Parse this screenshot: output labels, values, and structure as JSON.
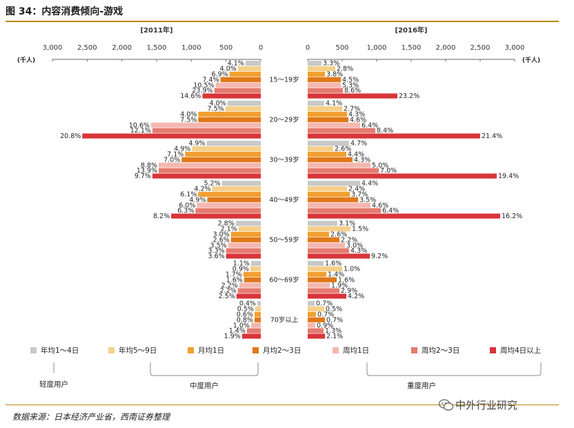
{
  "figure": {
    "title": "图 34：内容消费倾向-游戏",
    "source": "数据来源：日本经济产业省，西南证券整理",
    "watermark": "中外行业研究",
    "watermark_icon": "wechat-icon"
  },
  "chart_data": {
    "type": "bar",
    "unit_label": "(千人)",
    "panels": [
      {
        "name": "[2011年]",
        "direction": "left",
        "ticks": [
          3000,
          2500,
          2000,
          1500,
          1000,
          500,
          0
        ],
        "tick_labels": [
          "3,000",
          "2,500",
          "2,000",
          "1,500",
          "1,000",
          "500",
          "0"
        ],
        "xlim": [
          0,
          3000
        ]
      },
      {
        "name": "[2016年]",
        "direction": "right",
        "ticks": [
          0,
          500,
          1000,
          1500,
          2000,
          2500,
          3000
        ],
        "tick_labels": [
          "0",
          "500",
          "1,000",
          "1,500",
          "2,000",
          "2,500",
          "3,000"
        ],
        "xlim": [
          0,
          3000
        ]
      }
    ],
    "categories": [
      "15～19岁",
      "20～29岁",
      "30～39岁",
      "40～49岁",
      "50～59岁",
      "60～69岁",
      "70岁以上"
    ],
    "series_names": [
      "年均1～4日",
      "年均5～9日",
      "月均1日",
      "月均2～3日",
      "周均1日",
      "周均2～3日",
      "周均4日以上"
    ],
    "series_colors": [
      "#c8c8c8",
      "#f5d08a",
      "#f0a030",
      "#e07818",
      "#f4b8b0",
      "#e47a70",
      "#d8353a"
    ],
    "data_2011": [
      {
        "values": [
          220,
          330,
          450,
          580,
          650,
          670,
          840
        ],
        "labels": [
          "4.1%",
          "4.0%",
          "6.9%",
          "7.4%",
          "10.5%",
          "23.9%",
          "14.6%"
        ]
      },
      {
        "values": [
          480,
          510,
          900,
          900,
          1580,
          1560,
          2570
        ],
        "labels": [
          "4.0%",
          "7.5%",
          "4.0%",
          "7.5%",
          "10.6%",
          "12.1%",
          "20.8%"
        ]
      },
      {
        "values": [
          780,
          990,
          1090,
          1140,
          1470,
          1470,
          1560
        ],
        "labels": [
          "4.9%",
          "4.9%",
          "7.1%",
          "7.0%",
          "8.8%",
          "13.9%",
          "9.7%"
        ]
      },
      {
        "values": [
          560,
          700,
          900,
          770,
          920,
          940,
          1290
        ],
        "labels": [
          "5.2%",
          "4.2%",
          "6.1%",
          "4.9%",
          "6.0%",
          "6.3%",
          "8.2%"
        ]
      },
      {
        "values": [
          360,
          320,
          430,
          430,
          470,
          500,
          500
        ],
        "labels": [
          "2.8%",
          "2.1%",
          "3.0%",
          "2.6%",
          "3.5%",
          "3.3%",
          "3.6%"
        ]
      },
      {
        "values": [
          140,
          150,
          250,
          240,
          310,
          330,
          350
        ],
        "labels": [
          "1.1%",
          "0.9%",
          "1.7%",
          "1.6%",
          "2.2%",
          "2.2%",
          "2.5%"
        ]
      },
      {
        "values": [
          50,
          80,
          90,
          90,
          140,
          200,
          270
        ],
        "labels": [
          "0.4%",
          "0.5%",
          "0.6%",
          "0.8%",
          "1.0%",
          "1.4%",
          "1.9%"
        ]
      }
    ],
    "data_2016": [
      {
        "values": [
          200,
          400,
          250,
          480,
          480,
          510,
          1300
        ],
        "labels": [
          "3.3%",
          "2.8%",
          "3.8%",
          "4.5%",
          "5.3%",
          "8.6%",
          "23.2%"
        ]
      },
      {
        "values": [
          240,
          500,
          570,
          590,
          760,
          980,
          2500
        ],
        "labels": [
          "4.1%",
          "2.7%",
          "4.3%",
          "4.6%",
          "6.4%",
          "8.4%",
          "21.4%"
        ]
      },
      {
        "values": [
          600,
          370,
          560,
          650,
          910,
          1030,
          2740
        ],
        "labels": [
          "4.7%",
          "2.6%",
          "4.4%",
          "4.3%",
          "5.0%",
          "7.0%",
          "19.4%"
        ]
      },
      {
        "values": [
          760,
          570,
          610,
          730,
          910,
          1060,
          2790
        ],
        "labels": [
          "4.4%",
          "2.4%",
          "3.7%",
          "3.5%",
          "4.6%",
          "6.4%",
          "16.2%"
        ]
      },
      {
        "values": [
          430,
          620,
          310,
          460,
          540,
          600,
          900
        ],
        "labels": [
          "3.1%",
          "1.5%",
          "2.6%",
          "2.2%",
          "3.0%",
          "4.3%",
          "9.2%"
        ]
      },
      {
        "values": [
          230,
          500,
          270,
          420,
          320,
          460,
          560
        ],
        "labels": [
          "1.6%",
          "1.0%",
          "1.4%",
          "1.6%",
          "1.9%",
          "2.9%",
          "4.2%"
        ]
      },
      {
        "values": [
          100,
          240,
          120,
          250,
          110,
          230,
          250
        ],
        "labels": [
          "0.7%",
          "0.5%",
          "0.7%",
          "0.7%",
          "0.9%",
          "1.3%",
          "2.1%"
        ]
      }
    ],
    "user_groups": [
      {
        "label": "轻度用户",
        "series": [
          0
        ]
      },
      {
        "label": "中度用户",
        "series": [
          1,
          2,
          3
        ]
      },
      {
        "label": "重度用户",
        "series": [
          4,
          5,
          6
        ]
      }
    ]
  }
}
